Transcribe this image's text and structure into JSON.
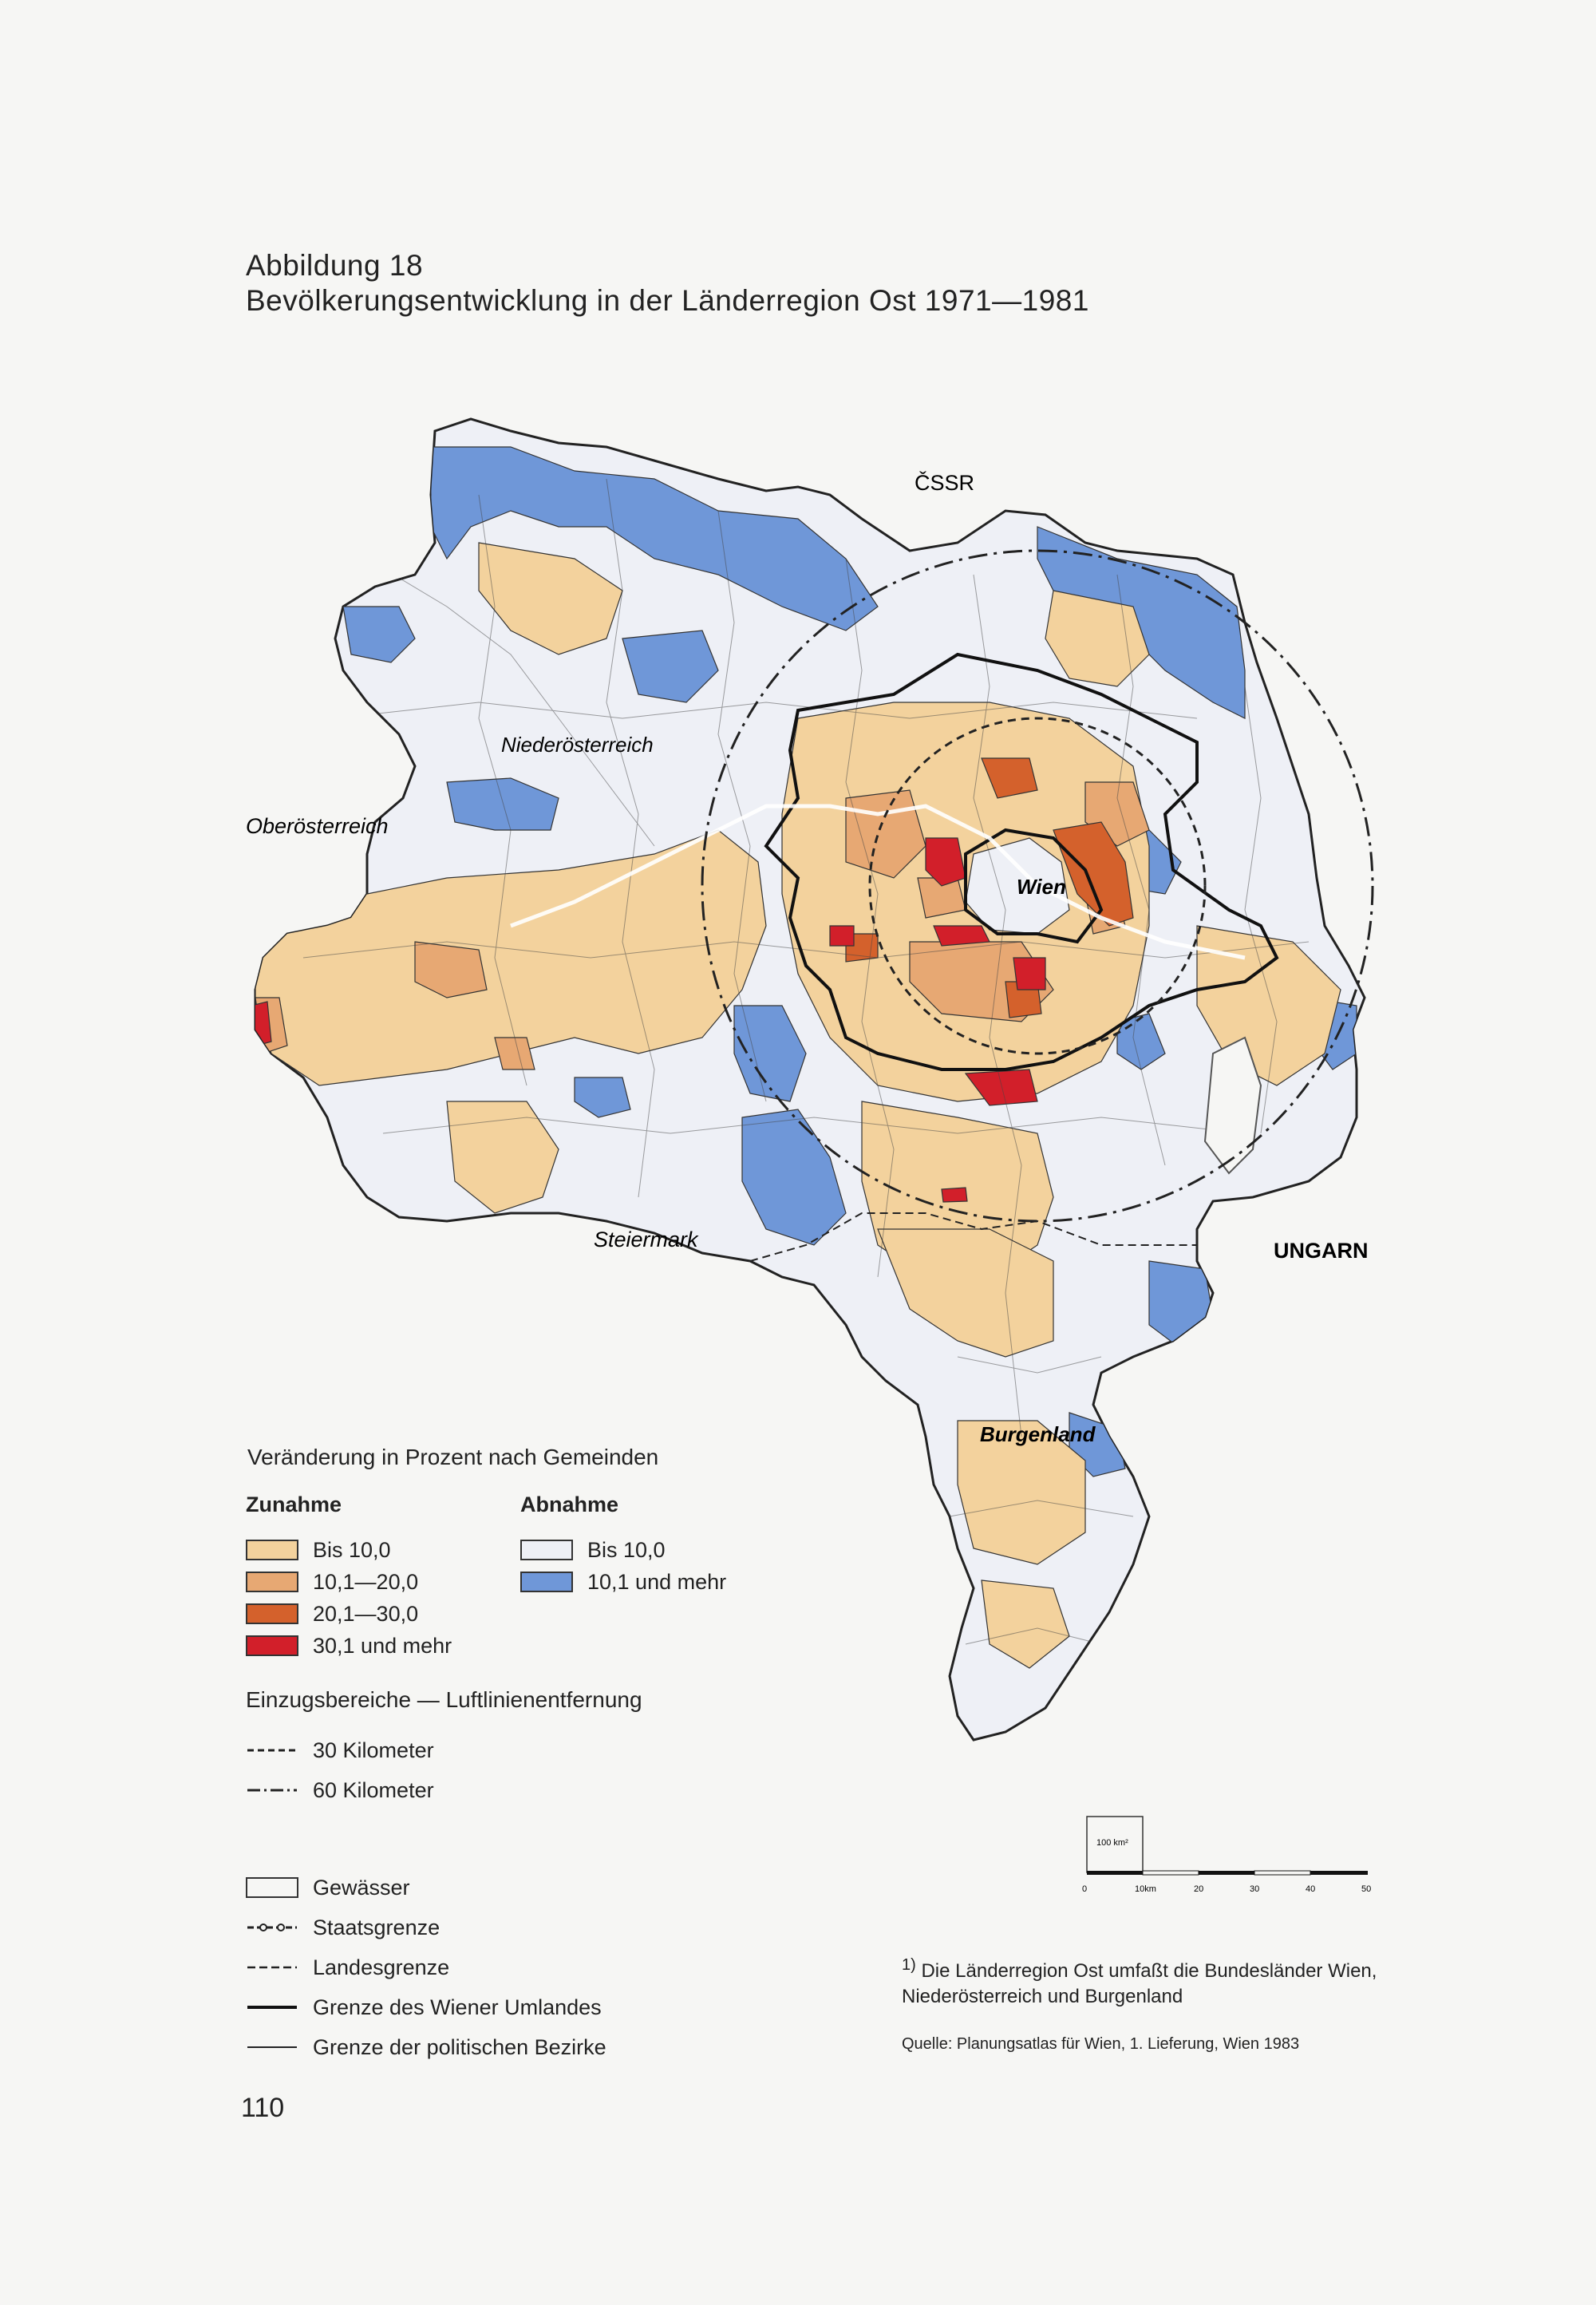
{
  "figure": {
    "label": "Abbildung 18",
    "title": "Bevölkerungsentwicklung in der Länderregion Ost 1971—1981"
  },
  "map_labels": {
    "cssr": "ČSSR",
    "ungarn": "UNGARN",
    "oberoesterreich": "Oberösterreich",
    "niederoesterreich": "Niederösterreich",
    "steiermark": "Steiermark",
    "wien": "Wien",
    "burgenland": "Burgenland"
  },
  "legend": {
    "heading": "Veränderung in Prozent nach Gemeinden",
    "increase": {
      "title": "Zunahme",
      "classes": [
        {
          "label": "Bis    10,0",
          "color": "#f3d29d"
        },
        {
          "label": "10,1—20,0",
          "color": "#e7a873"
        },
        {
          "label": "20,1—30,0",
          "color": "#d4612c"
        },
        {
          "label": "30,1 und mehr",
          "color": "#d21f2a"
        }
      ]
    },
    "decrease": {
      "title": "Abnahme",
      "classes": [
        {
          "label": "Bis    10,0",
          "color": "#eef0f6"
        },
        {
          "label": "10,1 und mehr",
          "color": "#6f97d8"
        }
      ]
    },
    "catchment": {
      "heading": "Einzugsbereiche — Luftlinienentfernung",
      "items": [
        {
          "label": "30 Kilometer",
          "line": "dashed"
        },
        {
          "label": "60 Kilometer",
          "line": "dash-dot"
        }
      ]
    },
    "lines": [
      {
        "label": "Gewässer",
        "type": "water-box"
      },
      {
        "label": "Staatsgrenze",
        "type": "state-border"
      },
      {
        "label": "Landesgrenze",
        "type": "state-province-border"
      },
      {
        "label": "Grenze des Wiener Umlandes",
        "type": "thick"
      },
      {
        "label": "Grenze der politischen Bezirke",
        "type": "thin"
      }
    ]
  },
  "scale": {
    "inset_label": "100 km²",
    "ticks": [
      "0",
      "10km",
      "20",
      "30",
      "40",
      "50"
    ]
  },
  "footnote": {
    "marker": "1)",
    "text": "Die Länderregion Ost umfaßt die Bundesländer Wien, Niederösterreich und Burgenland"
  },
  "source": "Quelle: Planungsatlas für Wien, 1. Lieferung, Wien 1983",
  "page_number": "110"
}
